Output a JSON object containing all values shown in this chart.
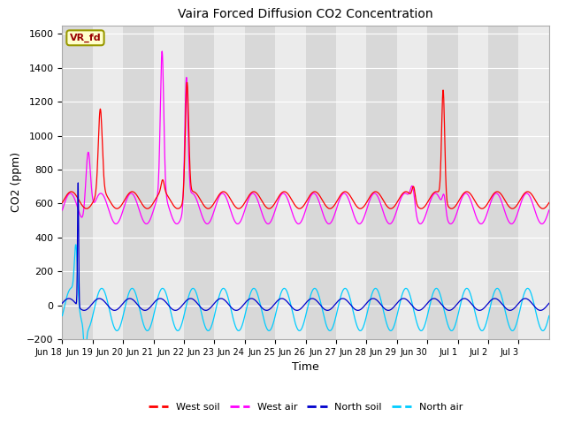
{
  "title": "Vaira Forced Diffusion CO2 Concentration",
  "xlabel": "Time",
  "ylabel": "CO2 (ppm)",
  "ylim": [
    -200,
    1650
  ],
  "yticks": [
    -200,
    0,
    200,
    400,
    600,
    800,
    1000,
    1200,
    1400,
    1600
  ],
  "colors": {
    "west_soil": "#ff0000",
    "west_air": "#ff00ff",
    "north_soil": "#0000cc",
    "north_air": "#00ccff"
  },
  "legend_labels": [
    "West soil",
    "West air",
    "North soil",
    "North air"
  ],
  "vr_fd_label": "VR_fd",
  "background_color": "#ffffff",
  "plot_bg_dark": "#d8d8d8",
  "plot_bg_light": "#ebebeb",
  "n_days": 16,
  "x_tick_labels": [
    "Jun 18",
    "Jun 19",
    "Jun 20",
    "Jun 21",
    "Jun 22",
    "Jun 23",
    "Jun 24",
    "Jun 25",
    "Jun 26",
    "Jun 27",
    "Jun 28",
    "Jun 29",
    "Jun 30",
    "Jul 1",
    "Jul 2",
    "Jul 3"
  ]
}
